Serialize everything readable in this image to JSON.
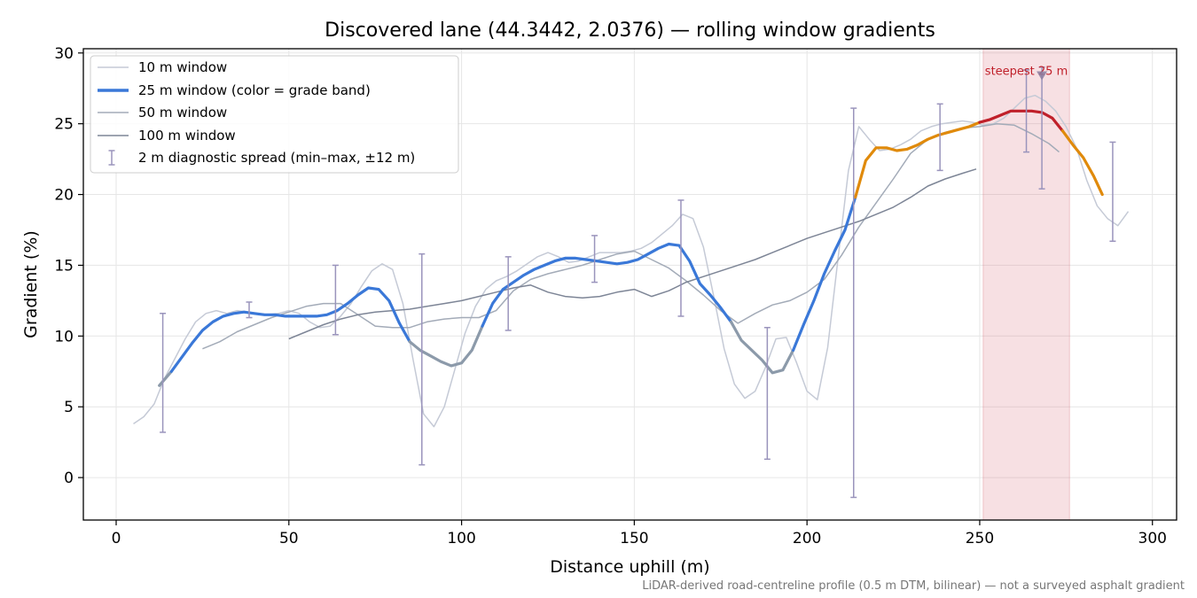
{
  "chart_data": {
    "type": "line",
    "title": "Discovered lane (44.3442, 2.0376) — rolling window gradients",
    "xlabel": "Distance uphill (m)",
    "ylabel": "Gradient (%)",
    "xlim": [
      -9.5,
      307
    ],
    "ylim": [
      -3,
      30.3
    ],
    "xticks": [
      0,
      50,
      100,
      150,
      200,
      250,
      300
    ],
    "yticks": [
      0,
      5,
      10,
      15,
      20,
      25,
      30
    ],
    "grid": true,
    "legend_position": "top-left",
    "footnote": "LiDAR-derived road-centreline profile (0.5 m DTM, bilinear) — not a surveyed asphalt gradient",
    "annotation": {
      "text": "steepest 25 m",
      "x": 268,
      "y": 28.7,
      "color": "#c0202a"
    },
    "highlight": {
      "x0": 251,
      "x1": 276,
      "color": "#d9747f"
    },
    "grade_colors": {
      "blue": "#3a78d8",
      "gray": "#8c9aaa",
      "orange": "#e08a0b",
      "red": "#c0202a"
    },
    "series": [
      {
        "name": "10 m window",
        "color": "#c5cad6",
        "x": [
          5,
          8,
          11,
          14,
          17,
          20,
          23,
          26,
          29,
          32,
          35,
          38,
          41,
          44,
          47,
          50,
          53,
          56,
          59,
          62,
          65,
          68,
          71,
          74,
          77,
          80,
          83,
          86,
          89,
          92,
          95,
          98,
          101,
          104,
          107,
          110,
          113,
          116,
          119,
          122,
          125,
          128,
          131,
          134,
          137,
          140,
          143,
          146,
          149,
          152,
          155,
          158,
          161,
          164,
          167,
          170,
          173,
          176,
          179,
          182,
          185,
          188,
          191,
          194,
          197,
          200,
          203,
          206,
          209,
          212,
          215,
          218,
          221,
          224,
          227,
          230,
          233,
          236,
          239,
          242,
          245,
          248,
          251,
          254,
          257,
          260,
          263,
          266,
          269,
          272,
          275,
          278,
          281,
          284,
          287,
          290,
          293
        ],
        "y": [
          3.8,
          4.3,
          5.2,
          7.0,
          8.4,
          9.8,
          11.0,
          11.6,
          11.8,
          11.6,
          11.8,
          11.7,
          11.6,
          11.5,
          11.6,
          11.8,
          11.6,
          11.0,
          10.6,
          10.7,
          11.4,
          12.3,
          13.5,
          14.6,
          15.1,
          14.7,
          12.3,
          8.3,
          4.5,
          3.6,
          5.0,
          7.6,
          10.2,
          12.1,
          13.3,
          13.9,
          14.2,
          14.6,
          15.1,
          15.6,
          15.9,
          15.6,
          15.2,
          15.3,
          15.6,
          15.9,
          15.9,
          15.9,
          16.0,
          16.2,
          16.6,
          17.2,
          17.8,
          18.6,
          18.3,
          16.3,
          12.8,
          9.1,
          6.6,
          5.6,
          6.1,
          7.8,
          9.8,
          9.9,
          8.1,
          6.1,
          5.5,
          9.2,
          15.5,
          21.7,
          24.8,
          23.9,
          23.1,
          23.2,
          23.5,
          23.9,
          24.5,
          24.8,
          25.0,
          25.1,
          25.2,
          25.1,
          24.9,
          25.0,
          25.4,
          26.1,
          26.8,
          27.0,
          26.6,
          25.9,
          24.8,
          23.3,
          21.0,
          19.2,
          18.3,
          17.8,
          18.8
        ]
      },
      {
        "name": "25 m window (color = grade band)",
        "color": "#3a78d8",
        "x": [
          12.5,
          16,
          19,
          22,
          25,
          28,
          31,
          34,
          37,
          40,
          43,
          46,
          49,
          52,
          55,
          58,
          61,
          64,
          67,
          70,
          73,
          76,
          79,
          82,
          85,
          88,
          91,
          94,
          97,
          100,
          103,
          106,
          109,
          112,
          115,
          118,
          121,
          124,
          127,
          130,
          133,
          136,
          139,
          142,
          145,
          148,
          151,
          154,
          157,
          160,
          163,
          166,
          169,
          172,
          175,
          178,
          181,
          184,
          187,
          190,
          193,
          196,
          199,
          202,
          205,
          208,
          211,
          214,
          217,
          220,
          223,
          226,
          229,
          232,
          235,
          238,
          241,
          244,
          247,
          250,
          253,
          256,
          259,
          262,
          265,
          268,
          271,
          274,
          277,
          280,
          283,
          285.5
        ],
        "y": [
          6.5,
          7.5,
          8.5,
          9.5,
          10.4,
          11.0,
          11.4,
          11.6,
          11.7,
          11.6,
          11.5,
          11.5,
          11.4,
          11.4,
          11.4,
          11.4,
          11.5,
          11.8,
          12.3,
          12.9,
          13.4,
          13.3,
          12.5,
          10.9,
          9.6,
          9.0,
          8.6,
          8.2,
          7.9,
          8.1,
          9.0,
          10.7,
          12.3,
          13.3,
          13.8,
          14.3,
          14.7,
          15.0,
          15.3,
          15.5,
          15.5,
          15.4,
          15.3,
          15.2,
          15.1,
          15.2,
          15.4,
          15.8,
          16.2,
          16.5,
          16.4,
          15.3,
          13.7,
          12.9,
          12.0,
          11.0,
          9.7,
          9.0,
          8.3,
          7.4,
          7.6,
          9.0,
          10.8,
          12.5,
          14.4,
          16.0,
          17.5,
          19.8,
          22.4,
          23.3,
          23.3,
          23.1,
          23.2,
          23.5,
          23.9,
          24.2,
          24.4,
          24.6,
          24.8,
          25.1,
          25.3,
          25.6,
          25.9,
          25.9,
          25.9,
          25.8,
          25.4,
          24.5,
          23.5,
          22.6,
          21.3,
          20.0
        ],
        "bands": [
          "gray",
          "blue",
          "blue",
          "blue",
          "blue",
          "blue",
          "blue",
          "blue",
          "blue",
          "blue",
          "blue",
          "blue",
          "blue",
          "blue",
          "blue",
          "blue",
          "blue",
          "blue",
          "blue",
          "blue",
          "blue",
          "blue",
          "blue",
          "blue",
          "gray",
          "gray",
          "gray",
          "gray",
          "gray",
          "gray",
          "gray",
          "blue",
          "blue",
          "blue",
          "blue",
          "blue",
          "blue",
          "blue",
          "blue",
          "blue",
          "blue",
          "blue",
          "blue",
          "blue",
          "blue",
          "blue",
          "blue",
          "blue",
          "blue",
          "blue",
          "blue",
          "blue",
          "blue",
          "blue",
          "blue",
          "gray",
          "gray",
          "gray",
          "gray",
          "gray",
          "gray",
          "blue",
          "blue",
          "blue",
          "blue",
          "blue",
          "blue",
          "orange",
          "orange",
          "orange",
          "orange",
          "orange",
          "orange",
          "orange",
          "orange",
          "orange",
          "orange",
          "orange",
          "orange",
          "red",
          "red",
          "red",
          "red",
          "red",
          "red",
          "red",
          "red",
          "orange",
          "orange",
          "orange",
          "orange",
          "orange"
        ]
      },
      {
        "name": "50 m window",
        "color": "#a3abb8",
        "x": [
          25,
          30,
          35,
          40,
          45,
          50,
          55,
          60,
          65,
          70,
          75,
          80,
          85,
          90,
          95,
          100,
          105,
          110,
          115,
          120,
          125,
          130,
          135,
          140,
          145,
          150,
          155,
          160,
          165,
          170,
          175,
          180,
          185,
          190,
          195,
          200,
          205,
          210,
          215,
          220,
          225,
          230,
          235,
          240,
          245,
          250,
          255,
          260,
          265,
          270,
          273
        ],
        "y": [
          9.1,
          9.6,
          10.3,
          10.8,
          11.3,
          11.7,
          12.1,
          12.3,
          12.3,
          11.5,
          10.7,
          10.6,
          10.6,
          11.0,
          11.2,
          11.3,
          11.3,
          11.8,
          13.2,
          14.0,
          14.4,
          14.7,
          15.0,
          15.4,
          15.8,
          16.0,
          15.4,
          14.8,
          13.9,
          12.9,
          11.8,
          10.9,
          11.6,
          12.2,
          12.5,
          13.1,
          14.0,
          15.7,
          17.7,
          19.4,
          21.1,
          22.9,
          23.9,
          24.4,
          24.7,
          24.8,
          25.0,
          24.9,
          24.3,
          23.6,
          23.0
        ]
      },
      {
        "name": "100 m window",
        "color": "#7d8596",
        "x": [
          50,
          55,
          60,
          65,
          70,
          75,
          80,
          85,
          90,
          95,
          100,
          105,
          110,
          115,
          120,
          125,
          130,
          135,
          140,
          145,
          150,
          155,
          160,
          165,
          170,
          175,
          180,
          185,
          190,
          195,
          200,
          205,
          210,
          215,
          220,
          225,
          230,
          235,
          240,
          245,
          249
        ],
        "y": [
          9.8,
          10.3,
          10.8,
          11.2,
          11.5,
          11.7,
          11.8,
          11.9,
          12.1,
          12.3,
          12.5,
          12.8,
          13.1,
          13.4,
          13.6,
          13.1,
          12.8,
          12.7,
          12.8,
          13.1,
          13.3,
          12.8,
          13.2,
          13.8,
          14.2,
          14.6,
          15.0,
          15.4,
          15.9,
          16.4,
          16.9,
          17.3,
          17.7,
          18.1,
          18.6,
          19.1,
          19.8,
          20.6,
          21.1,
          21.5,
          21.8
        ]
      }
    ],
    "error_bars": {
      "name": "2 m diagnostic spread (min–max, ±12 m)",
      "color": "#9a94bc",
      "x": [
        13.5,
        38.5,
        63.5,
        88.5,
        113.5,
        138.5,
        163.5,
        188.5,
        213.5,
        238.5,
        263.5,
        268,
        288.5
      ],
      "ymin": [
        3.2,
        11.3,
        10.1,
        0.9,
        10.4,
        13.8,
        11.4,
        1.3,
        -1.4,
        21.7,
        23.0,
        20.4,
        16.7
      ],
      "ymax": [
        11.6,
        12.4,
        15.0,
        15.8,
        15.6,
        17.1,
        19.6,
        10.6,
        26.1,
        26.4,
        28.8,
        29.0,
        23.7
      ]
    }
  }
}
